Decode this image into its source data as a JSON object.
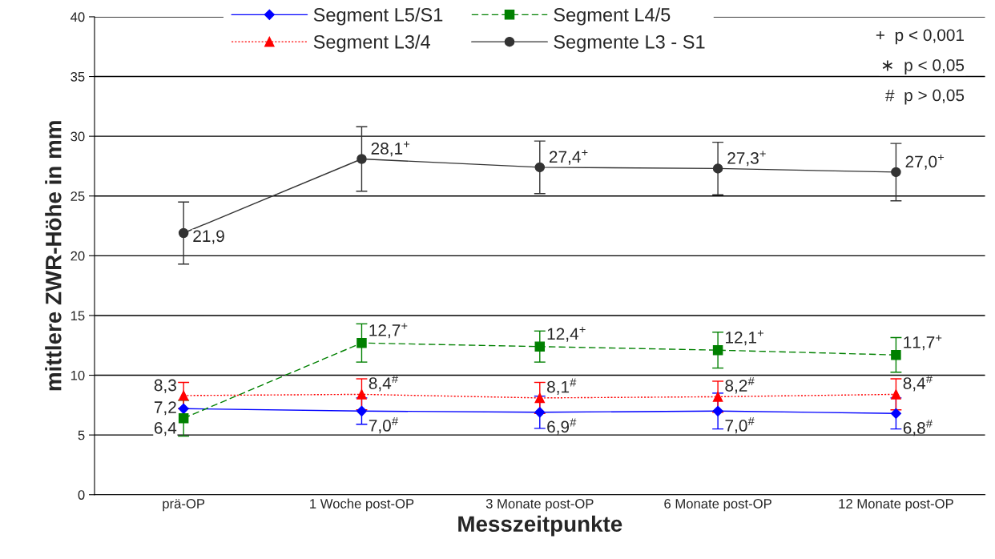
{
  "chart_data": {
    "type": "line",
    "xlabel": "Messzeitpunkte",
    "ylabel": "mittlere ZWR-Höhe in mm",
    "categories": [
      "prä-OP",
      "1 Woche post-OP",
      "3 Monate post-OP",
      "6 Monate post-OP",
      "12 Monate post-OP"
    ],
    "ylim": [
      0,
      40
    ],
    "yticks": [
      0,
      5,
      10,
      15,
      20,
      25,
      30,
      35,
      40
    ],
    "grid": "y",
    "legend": "top",
    "series": [
      {
        "name": "Segment L5/S1",
        "color": "#0000ff",
        "marker": "diamond",
        "line_style": "solid",
        "values": [
          7.2,
          7.0,
          6.9,
          7.0,
          6.8
        ],
        "errors": [
          null,
          1.1,
          1.35,
          1.5,
          1.3
        ],
        "value_labels": [
          "7,2",
          "7,0$^{#}$",
          "6,9$^{#}$",
          "7,0$^{#}$",
          "6,8$^{#}$"
        ]
      },
      {
        "name": "Segment L4/5",
        "color": "#008000",
        "marker": "square",
        "line_style": "dashed",
        "values": [
          6.4,
          12.7,
          12.4,
          12.1,
          11.7
        ],
        "errors": [
          1.5,
          1.6,
          1.3,
          1.5,
          1.45
        ],
        "value_labels": [
          "6,4",
          "12,7$^{+}$",
          "12,4$^{+}$",
          "12,1$^{+}$",
          "11,7$^{+}$"
        ]
      },
      {
        "name": "Segment L3/4",
        "color": "#ff0000",
        "marker": "triangle",
        "line_style": "dotted",
        "values": [
          8.3,
          8.4,
          8.1,
          8.2,
          8.4
        ],
        "errors": [
          1.1,
          1.3,
          1.3,
          1.3,
          1.3
        ],
        "value_labels": [
          "8,3",
          "8,4$^{#}$",
          "8,1$^{#}$",
          "8,2$^{#}$",
          "8,4$^{#}$"
        ]
      },
      {
        "name": "Segmente L3 - S1",
        "color": "#333333",
        "marker": "circle",
        "line_style": "solid",
        "values": [
          21.9,
          28.1,
          27.4,
          27.3,
          27.0
        ],
        "errors": [
          2.6,
          2.7,
          2.2,
          2.2,
          2.4
        ],
        "value_labels": [
          "21,9",
          "28,1$^{+}$",
          "27,4$^{+}$",
          "27,3$^{+}$",
          "27,0$^{+}$"
        ]
      }
    ],
    "annotations": [
      "+  p < 0,001",
      "∗  p < 0,05",
      "#  p > 0,05"
    ]
  }
}
